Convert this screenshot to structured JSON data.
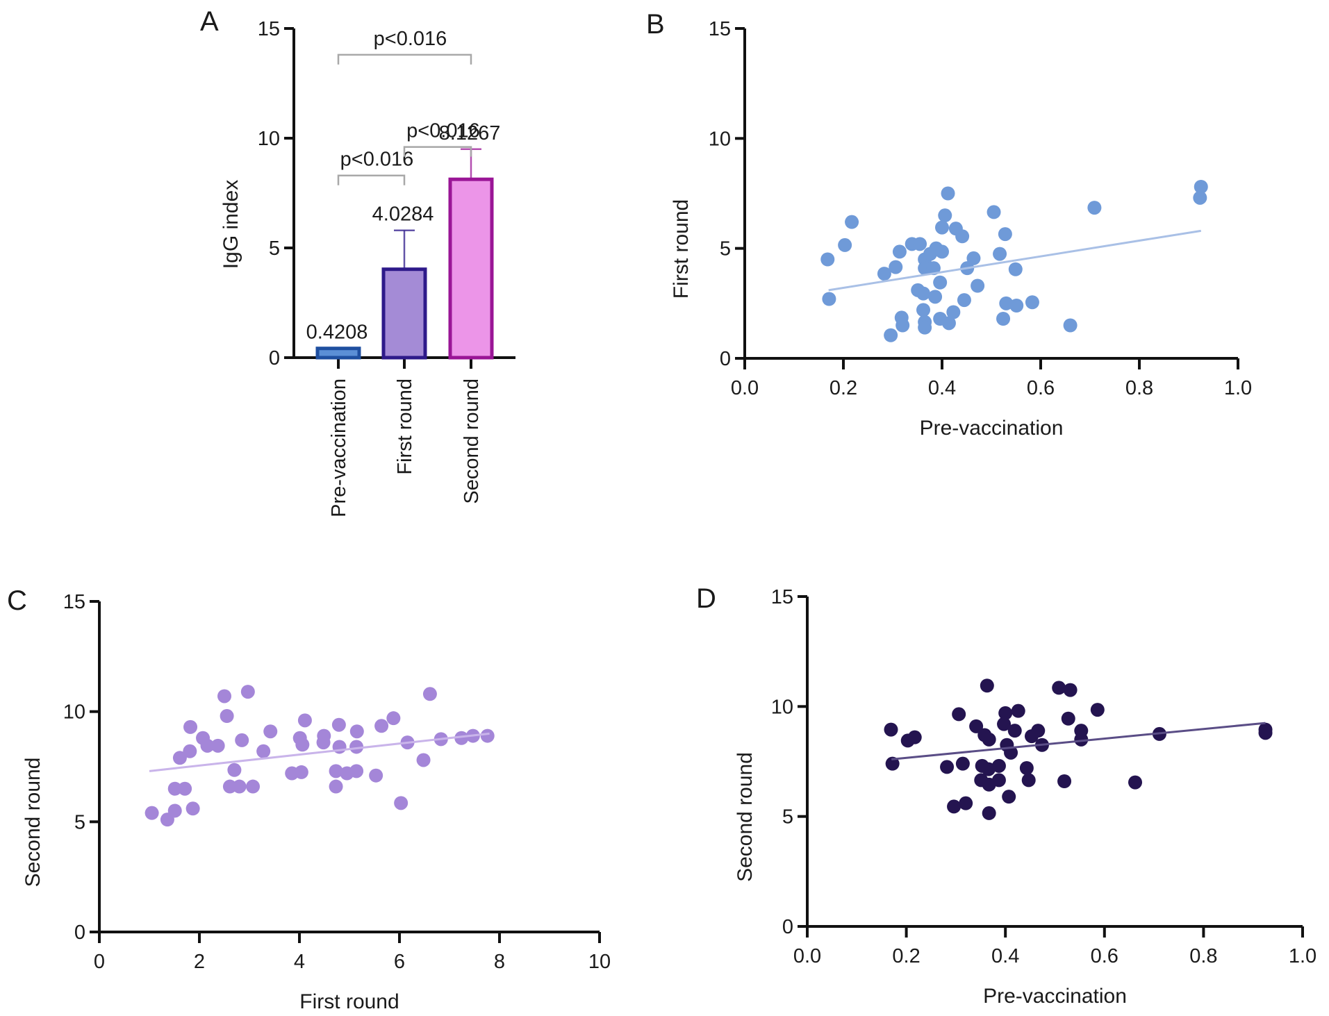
{
  "figure": {
    "panels": [
      "A",
      "B",
      "C",
      "D"
    ]
  },
  "chart_data": [
    {
      "panel": "A",
      "type": "bar",
      "title": "",
      "xlabel": "",
      "ylabel": "IgG index",
      "ylim": [
        0,
        15
      ],
      "yticks": [
        0,
        5,
        10,
        15
      ],
      "categories": [
        "Pre-vaccination",
        "First round",
        "Second round"
      ],
      "values": [
        0.4208,
        4.0284,
        8.1267
      ],
      "value_labels": [
        "0.4208",
        "4.0284",
        "8.1267"
      ],
      "error_upper": [
        0.42,
        5.8,
        9.5
      ],
      "colors": {
        "fill": [
          "#5b8fd6",
          "#a48bd6",
          "#ec95e8"
        ],
        "stroke": [
          "#1f4fa0",
          "#2e1a8a",
          "#9a1596"
        ]
      },
      "significance": [
        {
          "from": 0,
          "to": 1,
          "label": "p<0.016"
        },
        {
          "from": 1,
          "to": 2,
          "label": "p<0.016"
        },
        {
          "from": 0,
          "to": 2,
          "label": "p<0.016"
        }
      ]
    },
    {
      "panel": "B",
      "type": "scatter",
      "xlabel": "Pre-vaccination",
      "ylabel": "First round",
      "xlim": [
        0,
        1.0
      ],
      "ylim": [
        0,
        15
      ],
      "xticks": [
        "0.0",
        "0.2",
        "0.4",
        "0.6",
        "0.8",
        "1.0"
      ],
      "yticks": [
        "0",
        "5",
        "10",
        "15"
      ],
      "color": "#6f9ad8",
      "fit_line": {
        "x": [
          0.17,
          0.925
        ],
        "y": [
          3.1,
          5.8
        ],
        "color": "#a9c0e6"
      },
      "points": [
        [
          0.168,
          4.5
        ],
        [
          0.171,
          2.7
        ],
        [
          0.203,
          5.15
        ],
        [
          0.217,
          6.2
        ],
        [
          0.283,
          3.85
        ],
        [
          0.306,
          4.15
        ],
        [
          0.314,
          4.85
        ],
        [
          0.296,
          1.05
        ],
        [
          0.318,
          1.85
        ],
        [
          0.32,
          1.5
        ],
        [
          0.339,
          5.2
        ],
        [
          0.355,
          5.2
        ],
        [
          0.351,
          3.1
        ],
        [
          0.362,
          2.95
        ],
        [
          0.362,
          2.2
        ],
        [
          0.365,
          1.65
        ],
        [
          0.365,
          1.4
        ],
        [
          0.365,
          4.5
        ],
        [
          0.365,
          4.1
        ],
        [
          0.376,
          4.75
        ],
        [
          0.383,
          4.1
        ],
        [
          0.388,
          5.0
        ],
        [
          0.4,
          4.85
        ],
        [
          0.386,
          2.8
        ],
        [
          0.396,
          3.45
        ],
        [
          0.412,
          7.5
        ],
        [
          0.406,
          6.5
        ],
        [
          0.4,
          5.95
        ],
        [
          0.428,
          5.9
        ],
        [
          0.441,
          5.55
        ],
        [
          0.396,
          1.8
        ],
        [
          0.414,
          1.6
        ],
        [
          0.423,
          2.1
        ],
        [
          0.445,
          2.65
        ],
        [
          0.451,
          4.1
        ],
        [
          0.464,
          4.55
        ],
        [
          0.472,
          3.3
        ],
        [
          0.505,
          6.65
        ],
        [
          0.517,
          4.75
        ],
        [
          0.528,
          5.65
        ],
        [
          0.524,
          1.8
        ],
        [
          0.53,
          2.5
        ],
        [
          0.549,
          4.05
        ],
        [
          0.551,
          2.4
        ],
        [
          0.583,
          2.55
        ],
        [
          0.66,
          1.5
        ],
        [
          0.709,
          6.85
        ],
        [
          0.925,
          7.8
        ],
        [
          0.923,
          7.3
        ]
      ]
    },
    {
      "panel": "C",
      "type": "scatter",
      "xlabel": "First round",
      "ylabel": "Second round",
      "xlim": [
        0,
        10
      ],
      "ylim": [
        0,
        15
      ],
      "xticks": [
        "0",
        "2",
        "4",
        "6",
        "8",
        "10"
      ],
      "yticks": [
        "0",
        "5",
        "10",
        "15"
      ],
      "color": "#a486d8",
      "fit_line": {
        "x": [
          1.0,
          7.8
        ],
        "y": [
          7.3,
          9.0
        ],
        "color": "#c9b4ea"
      },
      "points": [
        [
          1.05,
          5.4
        ],
        [
          1.36,
          5.1
        ],
        [
          1.51,
          5.5
        ],
        [
          1.87,
          5.6
        ],
        [
          1.51,
          6.5
        ],
        [
          1.71,
          6.5
        ],
        [
          1.61,
          7.9
        ],
        [
          1.81,
          8.2
        ],
        [
          1.82,
          9.3
        ],
        [
          2.07,
          8.8
        ],
        [
          2.16,
          8.45
        ],
        [
          2.37,
          8.45
        ],
        [
          2.5,
          10.7
        ],
        [
          2.55,
          9.8
        ],
        [
          2.97,
          10.9
        ],
        [
          2.85,
          8.7
        ],
        [
          2.7,
          7.35
        ],
        [
          2.61,
          6.6
        ],
        [
          2.8,
          6.6
        ],
        [
          3.07,
          6.6
        ],
        [
          3.28,
          8.2
        ],
        [
          3.42,
          9.1
        ],
        [
          3.85,
          7.2
        ],
        [
          4.04,
          7.25
        ],
        [
          4.01,
          8.8
        ],
        [
          4.06,
          8.5
        ],
        [
          4.11,
          9.6
        ],
        [
          4.49,
          8.9
        ],
        [
          4.48,
          8.6
        ],
        [
          4.79,
          9.4
        ],
        [
          4.8,
          8.4
        ],
        [
          4.73,
          7.3
        ],
        [
          4.95,
          7.2
        ],
        [
          5.14,
          7.3
        ],
        [
          4.73,
          6.6
        ],
        [
          5.15,
          9.1
        ],
        [
          5.14,
          8.4
        ],
        [
          5.53,
          7.1
        ],
        [
          5.64,
          9.35
        ],
        [
          5.88,
          9.7
        ],
        [
          6.03,
          5.85
        ],
        [
          6.16,
          8.6
        ],
        [
          6.48,
          7.8
        ],
        [
          6.61,
          10.8
        ],
        [
          6.83,
          8.75
        ],
        [
          7.24,
          8.8
        ],
        [
          7.47,
          8.9
        ],
        [
          7.76,
          8.9
        ]
      ]
    },
    {
      "panel": "D",
      "type": "scatter",
      "xlabel": "Pre-vaccination",
      "ylabel": "Second round",
      "xlim": [
        0,
        1.0
      ],
      "ylim": [
        0,
        15
      ],
      "xticks": [
        "0.0",
        "0.2",
        "0.4",
        "0.6",
        "0.8",
        "1.0"
      ],
      "yticks": [
        "0",
        "5",
        "10",
        "15"
      ],
      "color": "#241450",
      "fit_line": {
        "x": [
          0.17,
          0.925
        ],
        "y": [
          7.6,
          9.25
        ],
        "color": "#5a4d86"
      },
      "points": [
        [
          0.169,
          8.95
        ],
        [
          0.172,
          7.4
        ],
        [
          0.203,
          8.45
        ],
        [
          0.217,
          8.6
        ],
        [
          0.282,
          7.25
        ],
        [
          0.306,
          9.65
        ],
        [
          0.314,
          7.4
        ],
        [
          0.296,
          5.45
        ],
        [
          0.32,
          5.6
        ],
        [
          0.341,
          9.1
        ],
        [
          0.363,
          10.95
        ],
        [
          0.358,
          8.7
        ],
        [
          0.367,
          8.5
        ],
        [
          0.353,
          7.3
        ],
        [
          0.366,
          7.15
        ],
        [
          0.351,
          6.65
        ],
        [
          0.367,
          6.45
        ],
        [
          0.387,
          7.3
        ],
        [
          0.387,
          6.65
        ],
        [
          0.367,
          5.15
        ],
        [
          0.4,
          9.7
        ],
        [
          0.397,
          9.2
        ],
        [
          0.426,
          9.8
        ],
        [
          0.419,
          8.9
        ],
        [
          0.403,
          8.25
        ],
        [
          0.411,
          7.9
        ],
        [
          0.407,
          5.9
        ],
        [
          0.443,
          7.2
        ],
        [
          0.447,
          6.65
        ],
        [
          0.453,
          8.65
        ],
        [
          0.466,
          8.9
        ],
        [
          0.474,
          8.25
        ],
        [
          0.508,
          10.85
        ],
        [
          0.531,
          10.75
        ],
        [
          0.519,
          6.6
        ],
        [
          0.527,
          9.45
        ],
        [
          0.553,
          8.9
        ],
        [
          0.553,
          8.5
        ],
        [
          0.586,
          9.85
        ],
        [
          0.662,
          6.55
        ],
        [
          0.711,
          8.75
        ],
        [
          0.925,
          8.95
        ],
        [
          0.925,
          8.8
        ]
      ]
    }
  ]
}
